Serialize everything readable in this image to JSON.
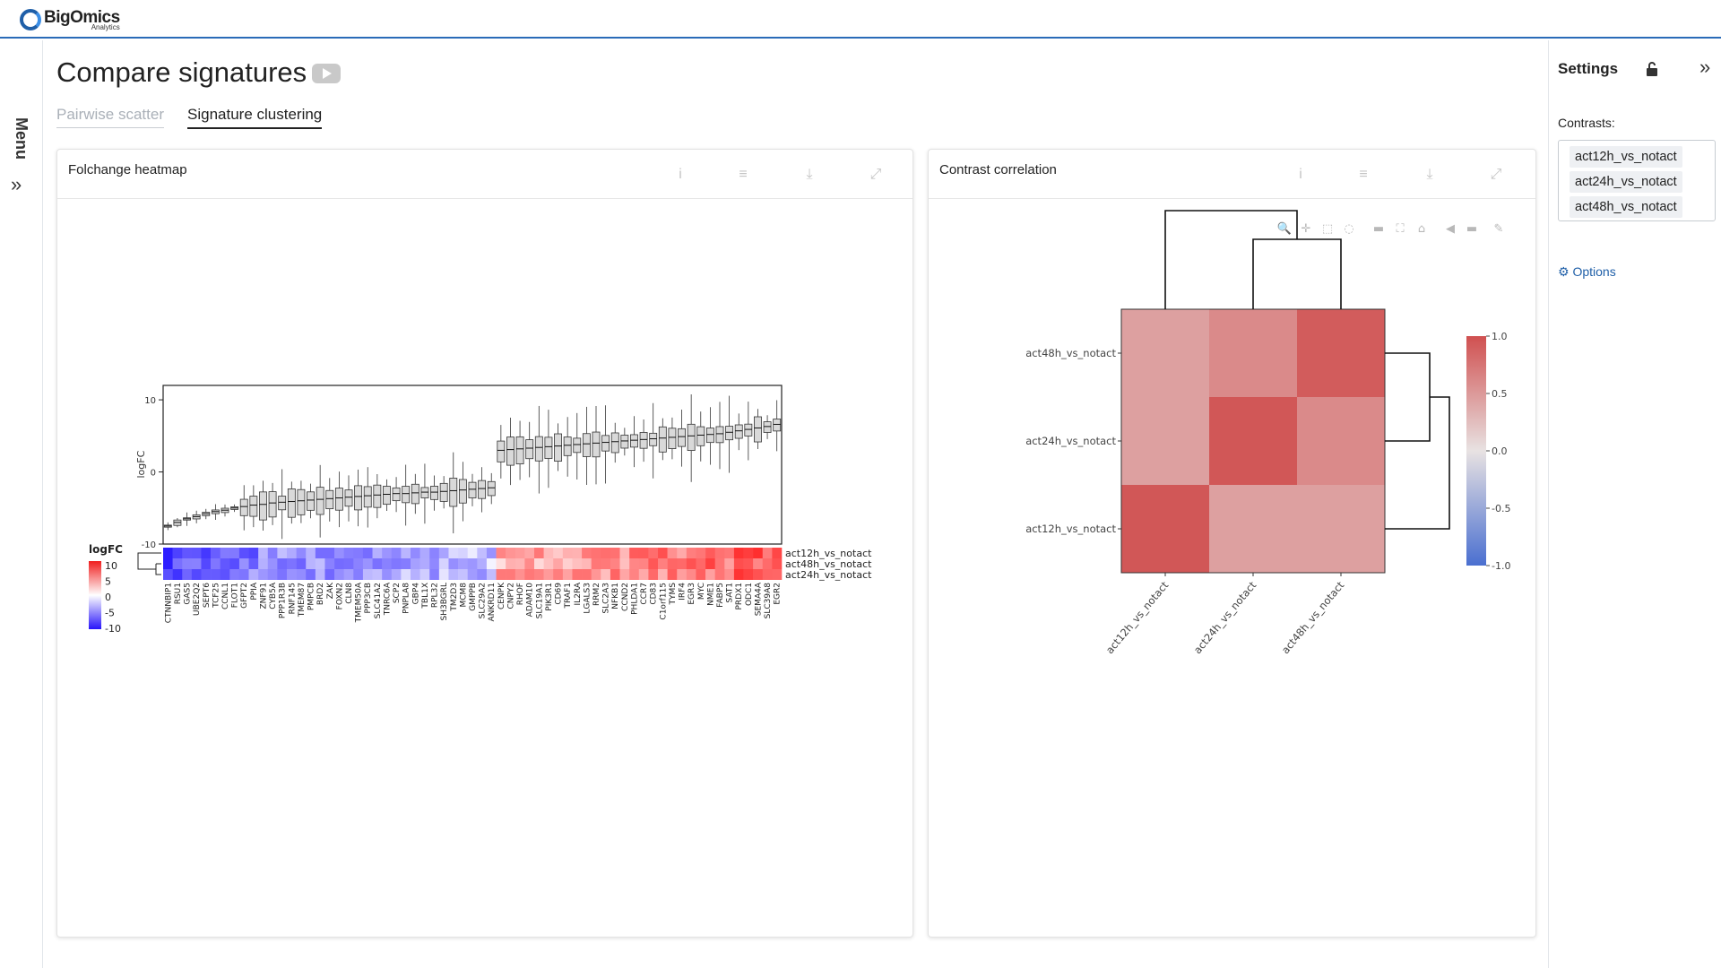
{
  "app": {
    "brand": "BigOmics",
    "brand_sub": "Analytics"
  },
  "sidebar": {
    "menu_label": "Menu"
  },
  "page": {
    "title": "Compare signatures"
  },
  "tabs": [
    {
      "label": "Pairwise scatter",
      "active": false
    },
    {
      "label": "Signature clustering",
      "active": true
    }
  ],
  "card_left": {
    "title": "Folchange heatmap"
  },
  "card_right": {
    "title": "Contrast correlation"
  },
  "card_tools": [
    "info-icon",
    "menu-icon",
    "download-icon",
    "expand-icon"
  ],
  "plotly_toolbar": [
    "zoom-icon",
    "pan-icon",
    "box-select-icon",
    "lasso-icon",
    "zoom-out-icon",
    "autoscale-icon",
    "home-icon",
    "spike-icon",
    "compare-icon",
    "edit-icon"
  ],
  "settings": {
    "title": "Settings",
    "contrasts_label": "Contrasts:",
    "contrasts": [
      "act12h_vs_notact",
      "act24h_vs_notact",
      "act48h_vs_notact"
    ],
    "options_label": "Options"
  },
  "chart_data": [
    {
      "type": "box",
      "title": "Folchange heatmap",
      "ylabel": "logFC",
      "ylim": [
        -10,
        12
      ],
      "yticks": [
        -10,
        0,
        10
      ],
      "genes": [
        "CTNNBIP1",
        "RSU1",
        "GAS5",
        "UBE2Q2",
        "SEPT6",
        "TCF25",
        "CCNL1",
        "FLOT1",
        "GFPT2",
        "PPIA",
        "ZNF91",
        "CYB5A",
        "PPP1R3B",
        "RNF145",
        "TMEM87",
        "PMPCB",
        "BRD2",
        "ZAK",
        "FOXN2",
        "CLN8",
        "TMEM50A",
        "PPP3CB",
        "SLC41A2",
        "TNRC6A",
        "SCP2",
        "PNPLA8",
        "GBP4",
        "TBL1X",
        "RPL32",
        "SH3BGRL",
        "TM2D3",
        "MCM8",
        "GMPPB",
        "SLC29A2",
        "ANKRD11",
        "CENPK",
        "CNPY2",
        "RHOF",
        "ADAM10",
        "SLC19A1",
        "PIK3R1",
        "CD69",
        "TRAF1",
        "IL2RA",
        "LGALS3",
        "RRM2",
        "SLC2A3",
        "NFKB1",
        "CCND2",
        "PHLDA1",
        "CCR7",
        "CD83",
        "C1orf115",
        "TYMS",
        "IRF4",
        "EGR3",
        "MYC",
        "NME1",
        "FABP5",
        "SAT1",
        "PRDX1",
        "ODC1",
        "SEMA4A",
        "SLC39A8",
        "EGR2"
      ],
      "median_logFC": [
        -7.5,
        -7.0,
        -6.5,
        -6.2,
        -5.8,
        -5.5,
        -5.3,
        -5.0,
        -4.8,
        -4.6,
        -4.5,
        -4.3,
        -4.2,
        -4.1,
        -4.0,
        -3.9,
        -3.8,
        -3.7,
        -3.6,
        -3.5,
        -3.4,
        -3.3,
        -3.2,
        -3.1,
        -3.0,
        -3.0,
        -2.9,
        -2.8,
        -2.8,
        -2.7,
        -2.6,
        -2.5,
        -2.4,
        -2.3,
        -2.2,
        3.0,
        3.1,
        3.2,
        3.3,
        3.4,
        3.5,
        3.6,
        3.7,
        3.8,
        3.9,
        4.0,
        4.1,
        4.2,
        4.3,
        4.4,
        4.5,
        4.6,
        4.7,
        4.8,
        4.9,
        5.0,
        5.1,
        5.2,
        5.3,
        5.5,
        5.7,
        5.9,
        6.1,
        6.3,
        6.6
      ],
      "heatmap_rows": [
        "act12h_vs_notact",
        "act48h_vs_notact",
        "act24h_vs_notact"
      ],
      "legend_title": "logFC",
      "legend_ticks": [
        10,
        5,
        0,
        -5,
        -10
      ]
    },
    {
      "type": "heatmap",
      "title": "Contrast correlation",
      "x": [
        "act12h_vs_notact",
        "act24h_vs_notact",
        "act48h_vs_notact"
      ],
      "y": [
        "act48h_vs_notact",
        "act24h_vs_notact",
        "act12h_vs_notact"
      ],
      "z": [
        [
          0.45,
          0.6,
          0.92
        ],
        [
          0.45,
          0.95,
          0.6
        ],
        [
          0.95,
          0.45,
          0.45
        ]
      ],
      "colorbar_ticks": [
        1.0,
        0.5,
        0.0,
        -0.5,
        -1.0
      ],
      "colorbar_range": [
        -1,
        1
      ]
    }
  ]
}
